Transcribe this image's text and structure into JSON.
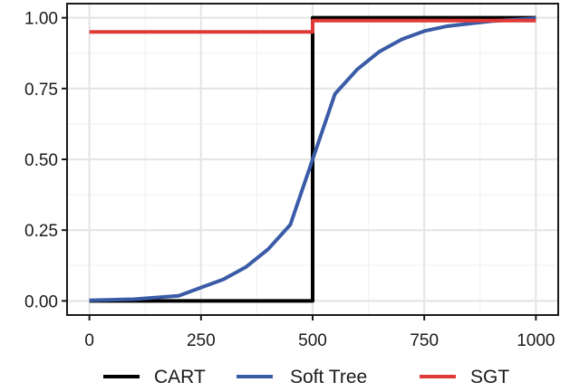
{
  "chart_data": {
    "type": "line",
    "title": "",
    "xlabel": "",
    "ylabel": "",
    "xlim": [
      -50,
      1050
    ],
    "ylim": [
      -0.05,
      1.05
    ],
    "x_ticks": [
      0,
      250,
      500,
      750,
      1000
    ],
    "x_tick_labels": [
      "0",
      "250",
      "500",
      "750",
      "1000"
    ],
    "y_ticks": [
      0,
      0.25,
      0.5,
      0.75,
      1.0
    ],
    "y_tick_labels": [
      "0.00",
      "0.25",
      "0.50",
      "0.75",
      "1.00"
    ],
    "grid": true,
    "legend_position": "bottom",
    "series": [
      {
        "name": "CART",
        "color": "#000000",
        "x": [
          0,
          500,
          500,
          1000
        ],
        "y": [
          0,
          0,
          1,
          1
        ]
      },
      {
        "name": "Soft Tree",
        "color": "#3a5ba6",
        "x": [
          0,
          100,
          200,
          250,
          300,
          350,
          400,
          450,
          500,
          550,
          600,
          650,
          700,
          750,
          800,
          900,
          1000
        ],
        "y": [
          0.002,
          0.006,
          0.018,
          0.047,
          0.076,
          0.119,
          0.182,
          0.269,
          0.5,
          0.731,
          0.818,
          0.881,
          0.924,
          0.953,
          0.97,
          0.988,
          0.998
        ]
      },
      {
        "name": "SGT",
        "color": "#e03a36",
        "x": [
          0,
          500,
          500,
          1000
        ],
        "y": [
          0.95,
          0.95,
          0.99,
          0.99
        ]
      }
    ]
  }
}
